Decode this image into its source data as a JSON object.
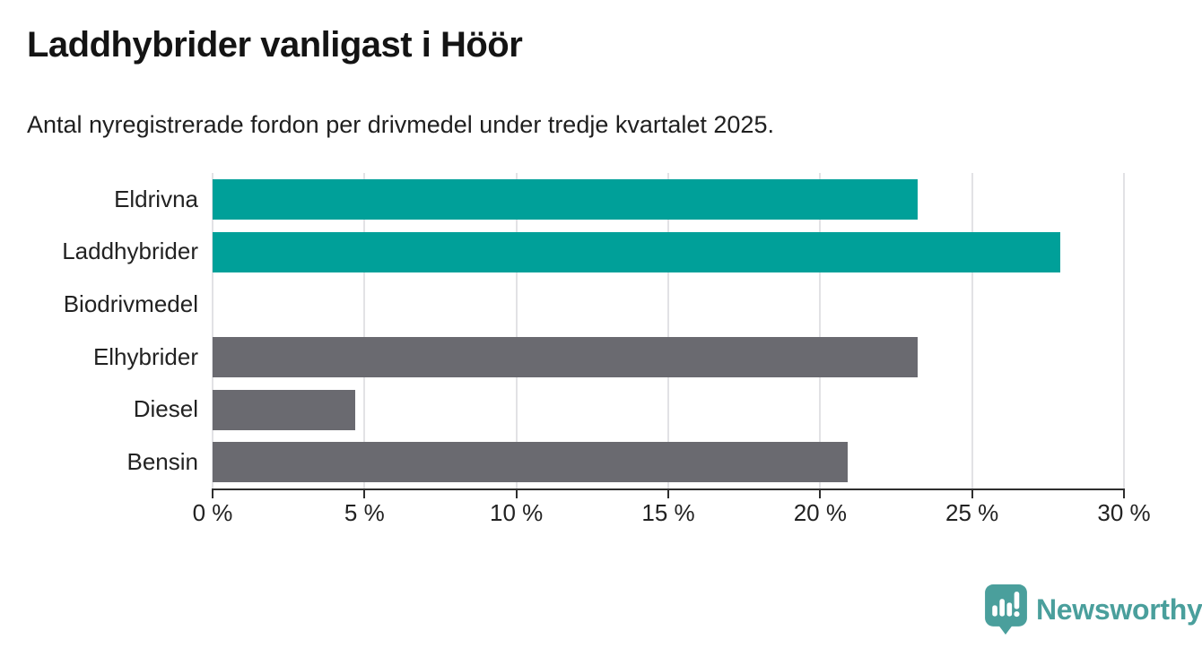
{
  "header": {
    "title": "Laddhybrider vanligast i Höör",
    "subtitle": "Antal nyregistrerade fordon per drivmedel under tredje kvartalet 2025."
  },
  "chart_data": {
    "type": "bar",
    "orientation": "horizontal",
    "title": "Laddhybrider vanligast i Höör",
    "subtitle": "Antal nyregistrerade fordon per drivmedel under tredje kvartalet 2025.",
    "categories": [
      "Eldrivna",
      "Laddhybrider",
      "Biodrivmedel",
      "Elhybrider",
      "Diesel",
      "Bensin"
    ],
    "values": [
      23.2,
      27.9,
      0,
      23.2,
      4.7,
      20.9
    ],
    "unit": "%",
    "xlim": [
      0,
      30
    ],
    "x_tick_values": [
      0,
      5,
      10,
      15,
      20,
      25,
      30
    ],
    "x_tick_labels": [
      "0 %",
      "5 %",
      "10 %",
      "15 %",
      "20 %",
      "25 %",
      "30 %"
    ],
    "grid": true,
    "legend": false,
    "xlabel": "",
    "ylabel": "",
    "colors": {
      "highlight": "#00a099",
      "default": "#6a6a70",
      "bar_colors": [
        "#00a099",
        "#00a099",
        "#6a6a70",
        "#6a6a70",
        "#6a6a70",
        "#6a6a70"
      ],
      "gridline": "#e2e2e5",
      "axis": "#2e2e2e",
      "text": "#222222"
    }
  },
  "footer": {
    "brand": "Newsworthy",
    "brand_color": "#4a9f9c"
  }
}
